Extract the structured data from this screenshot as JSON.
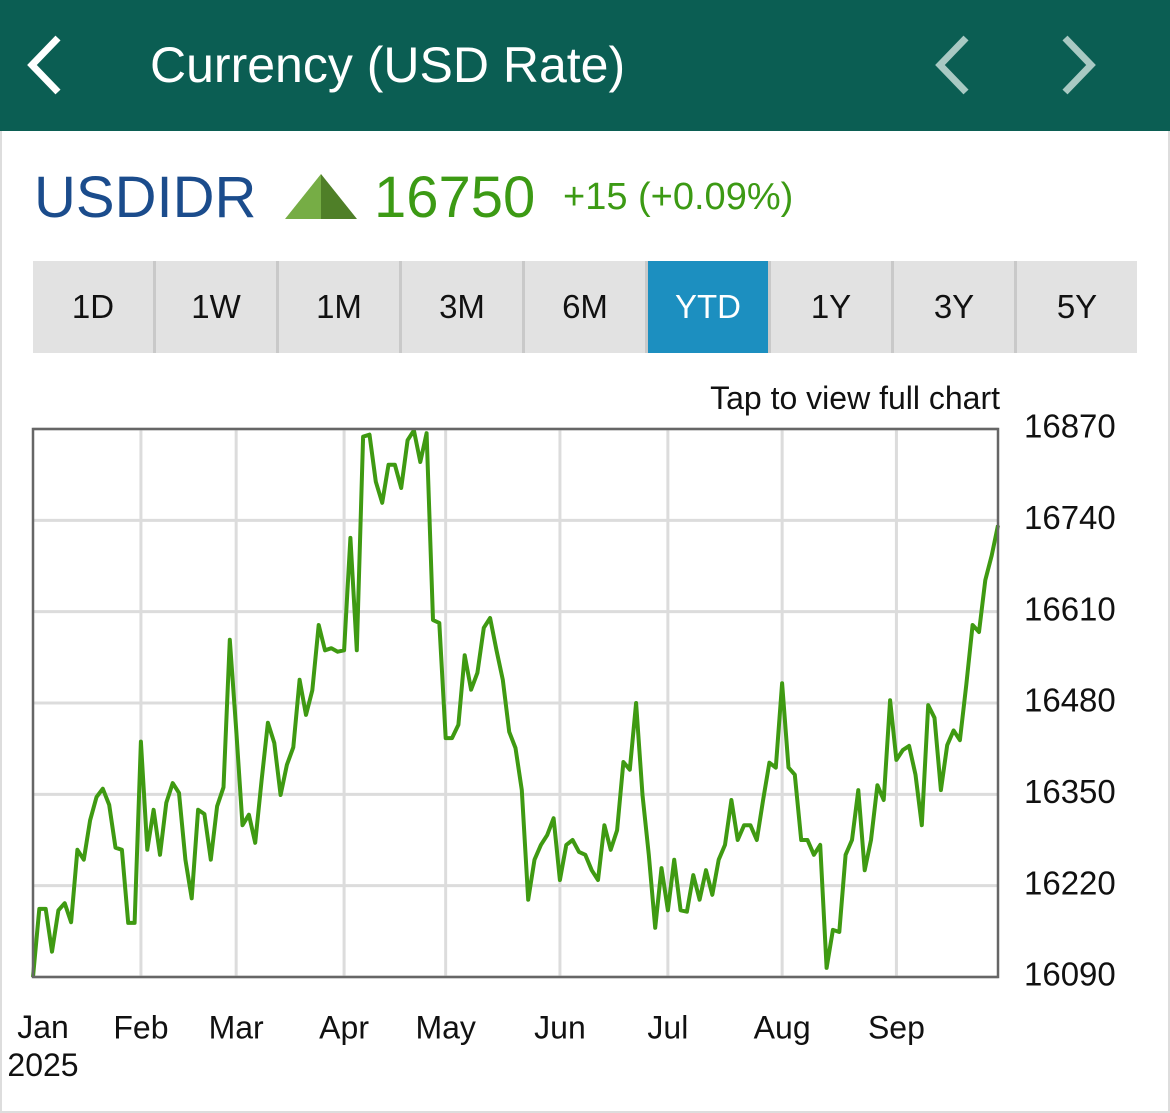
{
  "header": {
    "title": "Currency (USD Rate)"
  },
  "quote": {
    "symbol": "USDIDR",
    "price": "16750",
    "change": "+15 (+0.09%)"
  },
  "tabs": {
    "items": [
      "1D",
      "1W",
      "1M",
      "3M",
      "6M",
      "YTD",
      "1Y",
      "3Y",
      "5Y"
    ],
    "active": "YTD"
  },
  "chart_hint": "Tap to view full chart",
  "chart_data": {
    "type": "line",
    "color": "#3f9a12",
    "grid": true,
    "ylim": [
      16090,
      16870
    ],
    "yticks": [
      16090,
      16220,
      16350,
      16480,
      16610,
      16740,
      16870
    ],
    "categories": [
      "Jan 2025",
      null,
      null,
      null,
      null,
      null,
      null,
      null,
      null,
      null,
      null,
      null,
      null,
      null,
      null,
      null,
      null,
      "Feb",
      null,
      null,
      null,
      null,
      null,
      null,
      null,
      null,
      null,
      null,
      null,
      null,
      null,
      null,
      "Mar",
      null,
      null,
      null,
      null,
      null,
      null,
      null,
      null,
      null,
      null,
      null,
      null,
      null,
      null,
      null,
      null,
      "Apr",
      null,
      null,
      null,
      null,
      null,
      null,
      null,
      null,
      null,
      null,
      null,
      null,
      null,
      null,
      null,
      "May",
      null,
      null,
      null,
      null,
      null,
      null,
      null,
      null,
      null,
      null,
      null,
      null,
      null,
      null,
      null,
      null,
      null,
      "Jun",
      null,
      null,
      null,
      null,
      null,
      null,
      null,
      null,
      null,
      null,
      null,
      null,
      null,
      null,
      null,
      null,
      "Jul",
      null,
      null,
      null,
      null,
      null,
      null,
      null,
      null,
      null,
      null,
      null,
      null,
      null,
      null,
      null,
      null,
      null,
      "Aug",
      null,
      null,
      null,
      null,
      null,
      null,
      null,
      null,
      null,
      null,
      null,
      null,
      null,
      null,
      null,
      null,
      null,
      "Sep",
      null,
      null,
      null,
      null,
      null,
      null,
      null,
      null,
      null,
      null,
      null,
      null,
      null,
      null,
      null,
      null
    ],
    "values": [
      16090,
      16187,
      16187,
      16126,
      16185,
      16195,
      16168,
      16271,
      16257,
      16313,
      16346,
      16358,
      16335,
      16274,
      16271,
      16167,
      16167,
      16425,
      16271,
      16328,
      16264,
      16338,
      16366,
      16352,
      16257,
      16202,
      16328,
      16322,
      16257,
      16333,
      16360,
      16570,
      16442,
      16306,
      16321,
      16281,
      16370,
      16452,
      16423,
      16349,
      16392,
      16417,
      16513,
      16463,
      16498,
      16591,
      16555,
      16558,
      16553,
      16555,
      16715,
      16555,
      16859,
      16862,
      16795,
      16765,
      16819,
      16819,
      16786,
      16854,
      16868,
      16823,
      16864,
      16598,
      16594,
      16430,
      16430,
      16449,
      16548,
      16499,
      16523,
      16587,
      16601,
      16555,
      16513,
      16439,
      16416,
      16356,
      16200,
      16257,
      16278,
      16292,
      16316,
      16228,
      16278,
      16285,
      16268,
      16264,
      16242,
      16228,
      16306,
      16271,
      16299,
      16396,
      16385,
      16480,
      16349,
      16264,
      16160,
      16245,
      16185,
      16257,
      16185,
      16183,
      16235,
      16200,
      16242,
      16207,
      16257,
      16278,
      16342,
      16285,
      16306,
      16306,
      16285,
      16342,
      16395,
      16388,
      16508,
      16388,
      16378,
      16285,
      16285,
      16264,
      16278,
      16103,
      16157,
      16154,
      16264,
      16285,
      16356,
      16242,
      16285,
      16363,
      16342,
      16484,
      16399,
      16413,
      16419,
      16378,
      16306,
      16477,
      16459,
      16356,
      16420,
      16441,
      16427,
      16506,
      16591,
      16581,
      16655,
      16690,
      16733
    ]
  }
}
